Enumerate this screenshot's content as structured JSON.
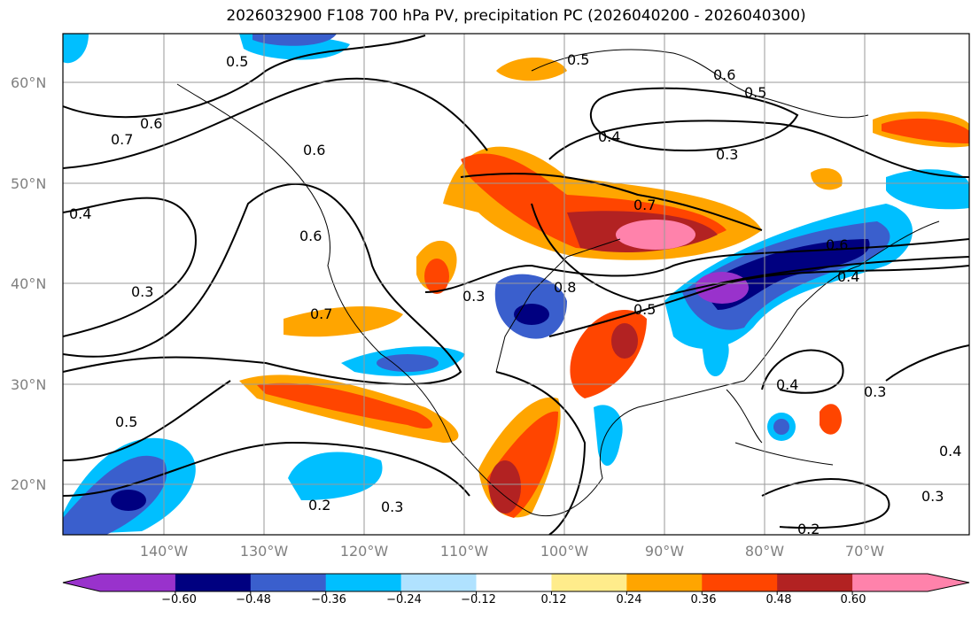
{
  "title": "2026032900 F108 700 hPa PV, precipitation PC (2026040200 - 2026040300)",
  "lat_ticks": [
    "60°N",
    "50°N",
    "40°N",
    "30°N",
    "20°N"
  ],
  "lon_ticks": [
    "140°W",
    "130°W",
    "120°W",
    "110°W",
    "100°W",
    "90°W",
    "80°W",
    "70°W"
  ],
  "contour_labels": [
    "0.5",
    "0.5",
    "0.6",
    "0.5",
    "0.7",
    "0.6",
    "0.6",
    "0.4",
    "0.3",
    "0.4",
    "0.7",
    "0.6",
    "0.3",
    "0.8",
    "0.5",
    "0.7",
    "0.3",
    "0.6",
    "0.4",
    "0.5",
    "0.2",
    "0.3",
    "0.4",
    "0.3",
    "0.4",
    "0.3",
    "0.2"
  ],
  "colorbar": {
    "colors": [
      "#9932CC",
      "#000080",
      "#3A5FCD",
      "#00BFFF",
      "#B0E2FF",
      "#FFFFFF",
      "#FFEC8B",
      "#FFA500",
      "#FF4500",
      "#B22222",
      "#FF82AB"
    ],
    "ticks": [
      "−0.60",
      "−0.48",
      "−0.36",
      "−0.24",
      "−0.12",
      "0.12",
      "0.24",
      "0.36",
      "0.48",
      "0.60"
    ]
  }
}
